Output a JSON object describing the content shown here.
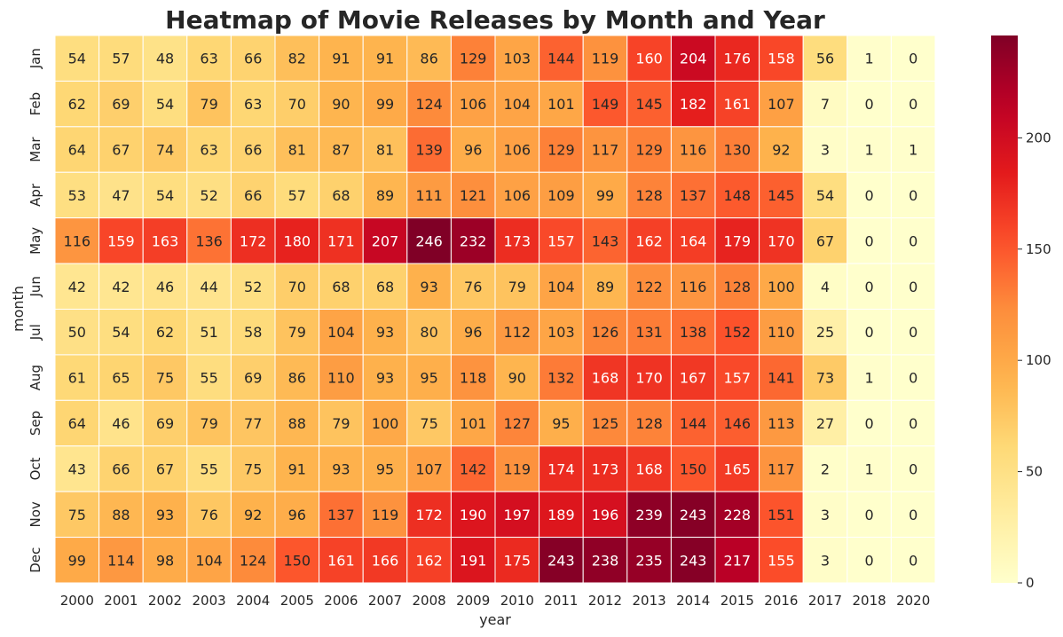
{
  "chart_data": {
    "type": "heatmap",
    "title": "Heatmap of Movie Releases by Month and Year",
    "xlabel": "year",
    "ylabel": "month",
    "x": [
      "2000",
      "2001",
      "2002",
      "2003",
      "2004",
      "2005",
      "2006",
      "2007",
      "2008",
      "2009",
      "2010",
      "2011",
      "2012",
      "2013",
      "2014",
      "2015",
      "2016",
      "2017",
      "2018",
      "2020"
    ],
    "y": [
      "Jan",
      "Feb",
      "Mar",
      "Apr",
      "May",
      "Jun",
      "Jul",
      "Aug",
      "Sep",
      "Oct",
      "Nov",
      "Dec"
    ],
    "values": [
      [
        54,
        57,
        48,
        63,
        66,
        82,
        91,
        91,
        86,
        129,
        103,
        144,
        119,
        160,
        204,
        176,
        158,
        56,
        1,
        0
      ],
      [
        62,
        69,
        54,
        79,
        63,
        70,
        90,
        99,
        124,
        106,
        104,
        101,
        149,
        145,
        182,
        161,
        107,
        7,
        0,
        0
      ],
      [
        64,
        67,
        74,
        63,
        66,
        81,
        87,
        81,
        139,
        96,
        106,
        129,
        117,
        129,
        116,
        130,
        92,
        3,
        1,
        1
      ],
      [
        53,
        47,
        54,
        52,
        66,
        57,
        68,
        89,
        111,
        121,
        106,
        109,
        99,
        128,
        137,
        148,
        145,
        54,
        0,
        0
      ],
      [
        116,
        159,
        163,
        136,
        172,
        180,
        171,
        207,
        246,
        232,
        173,
        157,
        143,
        162,
        164,
        179,
        170,
        67,
        0,
        0
      ],
      [
        42,
        42,
        46,
        44,
        52,
        70,
        68,
        68,
        93,
        76,
        79,
        104,
        89,
        122,
        116,
        128,
        100,
        4,
        0,
        0
      ],
      [
        50,
        54,
        62,
        51,
        58,
        79,
        104,
        93,
        80,
        96,
        112,
        103,
        126,
        131,
        138,
        152,
        110,
        25,
        0,
        0
      ],
      [
        61,
        65,
        75,
        55,
        69,
        86,
        110,
        93,
        95,
        118,
        90,
        132,
        168,
        170,
        167,
        157,
        141,
        73,
        1,
        0
      ],
      [
        64,
        46,
        69,
        79,
        77,
        88,
        79,
        100,
        75,
        101,
        127,
        95,
        125,
        128,
        144,
        146,
        113,
        27,
        0,
        0
      ],
      [
        43,
        66,
        67,
        55,
        75,
        91,
        93,
        95,
        107,
        142,
        119,
        174,
        173,
        168,
        150,
        165,
        117,
        2,
        1,
        0
      ],
      [
        75,
        88,
        93,
        76,
        92,
        96,
        137,
        119,
        172,
        190,
        197,
        189,
        196,
        239,
        243,
        228,
        151,
        3,
        0,
        0
      ],
      [
        99,
        114,
        98,
        104,
        124,
        150,
        161,
        166,
        162,
        191,
        175,
        243,
        238,
        235,
        243,
        217,
        155,
        3,
        0,
        0
      ]
    ],
    "colormap": "YlOrRd",
    "colorbar": {
      "min": 0,
      "max": 246,
      "ticks": [
        0,
        50,
        100,
        150,
        200
      ]
    },
    "annotated": true,
    "grid": false,
    "colors": {
      "cell_border": "#ffffff",
      "text_dark": "#262626",
      "text_light": "#ffffff"
    }
  }
}
